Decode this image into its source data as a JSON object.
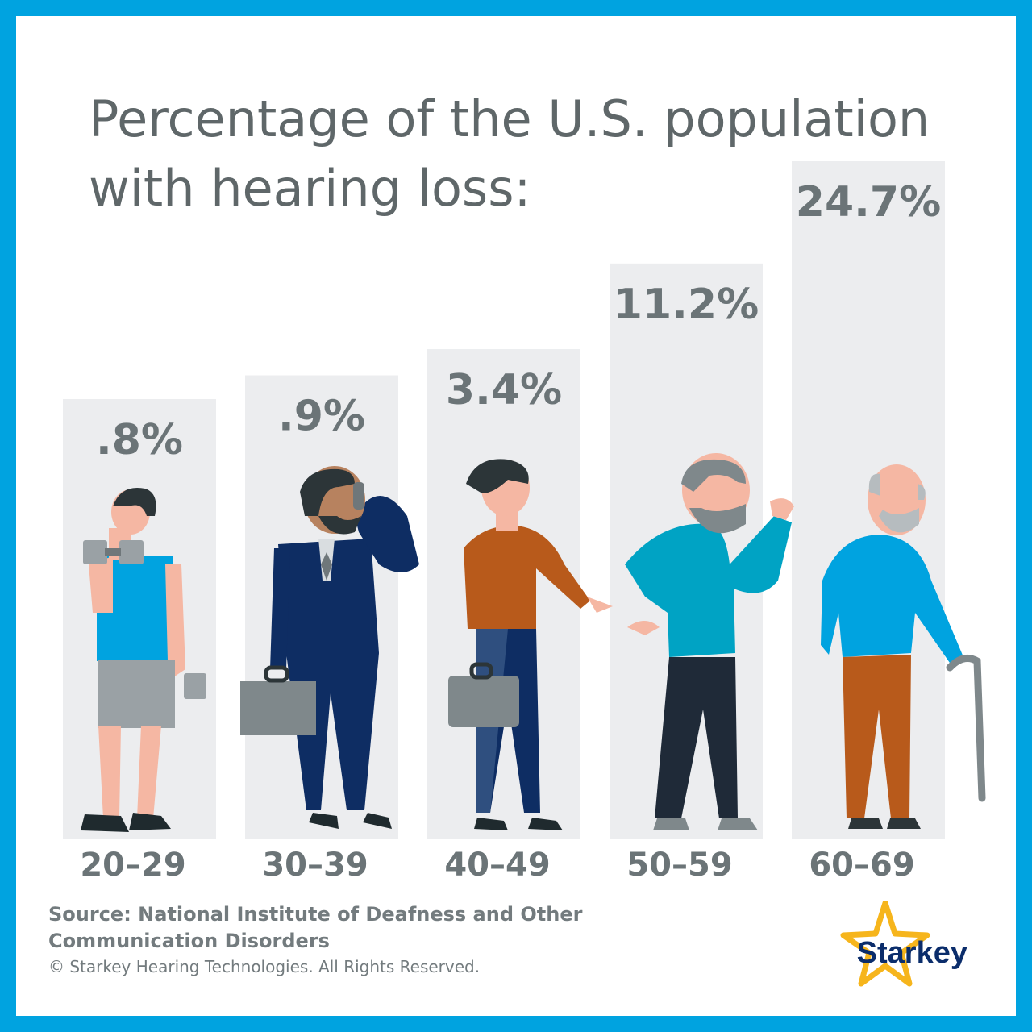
{
  "title_line1": "Percentage of the U.S. population",
  "title_line2": "with hearing loss:",
  "chart_data": {
    "type": "bar",
    "title": "Percentage of the U.S. population with hearing loss:",
    "categories": [
      "20–29",
      "30–39",
      "40–49",
      "50–59",
      "60–69"
    ],
    "values": [
      0.8,
      0.9,
      3.4,
      11.2,
      24.7
    ],
    "value_labels": [
      ".8%",
      ".9%",
      "3.4%",
      "11.2%",
      "24.7%"
    ],
    "xlabel": "",
    "ylabel": "",
    "grid": false,
    "legend": "none"
  },
  "source_line1": "Source: National Institute of Deafness and Other",
  "source_line2": "Communication Disorders",
  "copyright": "© Starkey Hearing Technologies. All Rights Reserved.",
  "logo_text": "Starkey",
  "colors": {
    "border": "#00a3e0",
    "bar_background": "#ecedef",
    "value_text": "#6b7477",
    "category_text": "#6b7477",
    "logo_star": "#f6b51c",
    "logo_text": "#0b2d6b"
  }
}
